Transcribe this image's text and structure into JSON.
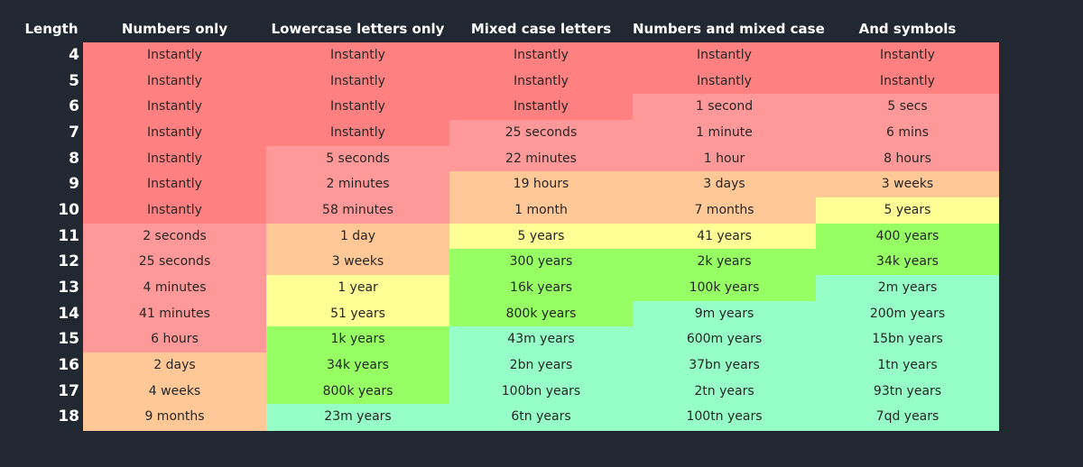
{
  "headers": [
    "Length",
    "Numbers only",
    "Lowercase letters only",
    "Mixed case letters",
    "Numbers and mixed case",
    "And symbols"
  ],
  "rows": [
    {
      "length": "4",
      "cells": [
        "Instantly",
        "Instantly",
        "Instantly",
        "Instantly",
        "Instantly"
      ],
      "colors": [
        "#ff8080",
        "#ff8080",
        "#ff8080",
        "#ff8080",
        "#ff8080"
      ]
    },
    {
      "length": "5",
      "cells": [
        "Instantly",
        "Instantly",
        "Instantly",
        "Instantly",
        "Instantly"
      ],
      "colors": [
        "#ff8080",
        "#ff8080",
        "#ff8080",
        "#ff8080",
        "#ff8080"
      ]
    },
    {
      "length": "6",
      "cells": [
        "Instantly",
        "Instantly",
        "Instantly",
        "1 second",
        "5 secs"
      ],
      "colors": [
        "#ff8080",
        "#ff8080",
        "#ff8080",
        "#ff9898",
        "#ff9898"
      ]
    },
    {
      "length": "7",
      "cells": [
        "Instantly",
        "Instantly",
        "25 seconds",
        "1 minute",
        "6 mins"
      ],
      "colors": [
        "#ff8080",
        "#ff8080",
        "#ff9898",
        "#ff9898",
        "#ff9898"
      ]
    },
    {
      "length": "8",
      "cells": [
        "Instantly",
        "5 seconds",
        "22 minutes",
        "1 hour",
        "8 hours"
      ],
      "colors": [
        "#ff8080",
        "#ff9898",
        "#ff9898",
        "#ff9898",
        "#ff9898"
      ]
    },
    {
      "length": "9",
      "cells": [
        "Instantly",
        "2 minutes",
        "19 hours",
        "3 days",
        "3 weeks"
      ],
      "colors": [
        "#ff8080",
        "#ff9898",
        "#ffc896",
        "#ffc896",
        "#ffc896"
      ]
    },
    {
      "length": "10",
      "cells": [
        "Instantly",
        "58 minutes",
        "1 month",
        "7 months",
        "5 years"
      ],
      "colors": [
        "#ff8080",
        "#ff9898",
        "#ffc896",
        "#ffc896",
        "#ffff96"
      ]
    },
    {
      "length": "11",
      "cells": [
        "2 seconds",
        "1 day",
        "5 years",
        "41 years",
        "400 years"
      ],
      "colors": [
        "#ff9898",
        "#ffc896",
        "#ffff96",
        "#ffff96",
        "#96ff64"
      ]
    },
    {
      "length": "12",
      "cells": [
        "25 seconds",
        "3 weeks",
        "300 years",
        "2k years",
        "34k years"
      ],
      "colors": [
        "#ff9898",
        "#ffc896",
        "#96ff64",
        "#96ff64",
        "#96ff64"
      ]
    },
    {
      "length": "13",
      "cells": [
        "4 minutes",
        "1 year",
        "16k years",
        "100k years",
        "2m years"
      ],
      "colors": [
        "#ff9898",
        "#ffff96",
        "#96ff64",
        "#96ff64",
        "#96ffc8"
      ]
    },
    {
      "length": "14",
      "cells": [
        "41 minutes",
        "51 years",
        "800k years",
        "9m years",
        "200m years"
      ],
      "colors": [
        "#ff9898",
        "#ffff96",
        "#96ff64",
        "#96ffc8",
        "#96ffc8"
      ]
    },
    {
      "length": "15",
      "cells": [
        "6 hours",
        "1k years",
        "43m years",
        "600m years",
        "15bn years"
      ],
      "colors": [
        "#ff9898",
        "#96ff64",
        "#96ffc8",
        "#96ffc8",
        "#96ffc8"
      ]
    },
    {
      "length": "16",
      "cells": [
        "2 days",
        "34k years",
        "2bn years",
        "37bn years",
        "1tn years"
      ],
      "colors": [
        "#ffc896",
        "#96ff64",
        "#96ffc8",
        "#96ffc8",
        "#96ffc8"
      ]
    },
    {
      "length": "17",
      "cells": [
        "4 weeks",
        "800k years",
        "100bn years",
        "2tn years",
        "93tn years"
      ],
      "colors": [
        "#ffc896",
        "#96ff64",
        "#96ffc8",
        "#96ffc8",
        "#96ffc8"
      ]
    },
    {
      "length": "18",
      "cells": [
        "9 months",
        "23m years",
        "6tn years",
        "100tn years",
        "7qd years"
      ],
      "colors": [
        "#ffc896",
        "#96ffc8",
        "#96ffc8",
        "#96ffc8",
        "#96ffc8"
      ]
    }
  ]
}
